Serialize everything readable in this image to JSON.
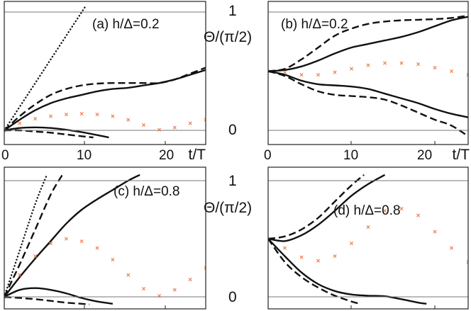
{
  "chart_data": [
    {
      "type": "line",
      "panel_label": "(a) h/Δ=0.2",
      "xlabel": "t/T",
      "ylabel": "Θ/(π/2)",
      "xlim": [
        0,
        26
      ],
      "ylim": [
        -0.05,
        1.05
      ],
      "xticks": [
        "0",
        "10",
        "20"
      ],
      "yticks": [
        "0",
        "1"
      ],
      "ref_lines": [
        0,
        1
      ],
      "series": [
        {
          "style": "dotted",
          "x": [
            0,
            3,
            6,
            9,
            10.5
          ],
          "y": [
            0,
            0.3,
            0.6,
            0.9,
            1.05
          ]
        },
        {
          "style": "dashed",
          "x": [
            0,
            2,
            4,
            6,
            8,
            10,
            12,
            14,
            16,
            18,
            20,
            22,
            24,
            26
          ],
          "y": [
            0,
            0.12,
            0.22,
            0.3,
            0.35,
            0.38,
            0.395,
            0.4,
            0.4,
            0.4,
            0.4,
            0.43,
            0.48,
            0.53
          ]
        },
        {
          "style": "solid",
          "x": [
            0,
            2,
            4,
            6,
            8,
            10,
            12,
            14,
            16,
            18,
            20,
            22,
            24,
            26
          ],
          "y": [
            0,
            0.09,
            0.17,
            0.23,
            0.27,
            0.3,
            0.33,
            0.35,
            0.36,
            0.38,
            0.4,
            0.43,
            0.47,
            0.51
          ]
        },
        {
          "style": "markers",
          "x": [
            0,
            2,
            4,
            6,
            8,
            10,
            12,
            14,
            16,
            18,
            20,
            22,
            24,
            26
          ],
          "y": [
            0,
            0.06,
            0.1,
            0.12,
            0.135,
            0.14,
            0.135,
            0.12,
            0.09,
            0.045,
            0.005,
            0.025,
            0.06,
            0.09
          ]
        },
        {
          "style": "dashed",
          "x": [
            0,
            2,
            4,
            6,
            8,
            10,
            11.5
          ],
          "y": [
            0,
            0,
            -0.01,
            -0.02,
            -0.035,
            -0.05,
            -0.06
          ]
        },
        {
          "style": "solid",
          "x": [
            0,
            2,
            4,
            6,
            8,
            10,
            12,
            13.5
          ],
          "y": [
            0,
            0.02,
            0.025,
            0.02,
            0.005,
            -0.015,
            -0.04,
            -0.06
          ]
        }
      ]
    },
    {
      "type": "line",
      "panel_label": "(b) h/Δ=0.2",
      "xlabel": "t/T",
      "ylabel": "",
      "xlim": [
        0,
        24
      ],
      "ylim": [
        -0.05,
        1.05
      ],
      "xticks": [
        "0",
        "10",
        "20"
      ],
      "yticks": [],
      "ref_lines": [
        0,
        1
      ],
      "series": [
        {
          "style": "dashed",
          "x": [
            0,
            2,
            4,
            6,
            8,
            10,
            12,
            14,
            16,
            18,
            20,
            22,
            24
          ],
          "y": [
            0.5,
            0.52,
            0.6,
            0.7,
            0.8,
            0.86,
            0.9,
            0.92,
            0.93,
            0.935,
            0.94,
            0.95,
            0.97
          ]
        },
        {
          "style": "solid",
          "x": [
            0,
            2,
            4,
            6,
            8,
            10,
            12,
            14,
            16,
            18,
            20,
            22,
            24
          ],
          "y": [
            0.5,
            0.51,
            0.54,
            0.59,
            0.65,
            0.7,
            0.73,
            0.76,
            0.79,
            0.83,
            0.88,
            0.93,
            0.96
          ]
        },
        {
          "style": "markers",
          "x": [
            0,
            2,
            4,
            6,
            8,
            10,
            12,
            14,
            16,
            18,
            20,
            22,
            24
          ],
          "y": [
            0.5,
            0.49,
            0.47,
            0.47,
            0.49,
            0.52,
            0.55,
            0.57,
            0.57,
            0.56,
            0.53,
            0.5,
            0.47
          ]
        },
        {
          "style": "solid",
          "x": [
            0,
            2,
            4,
            6,
            8,
            10,
            12,
            14,
            16,
            18,
            20,
            22,
            24
          ],
          "y": [
            0.5,
            0.47,
            0.42,
            0.39,
            0.38,
            0.37,
            0.35,
            0.31,
            0.27,
            0.23,
            0.18,
            0.14,
            0.11
          ]
        },
        {
          "style": "dashed",
          "x": [
            0,
            2,
            4,
            6,
            8,
            10,
            12,
            14,
            16,
            18,
            20,
            22,
            24
          ],
          "y": [
            0.5,
            0.46,
            0.39,
            0.33,
            0.3,
            0.29,
            0.28,
            0.26,
            0.21,
            0.15,
            0.09,
            0.04,
            -0.05
          ]
        }
      ]
    },
    {
      "type": "line",
      "panel_label": "(c) h/Δ=0.8",
      "xlabel": "",
      "ylabel": "Θ/(π/2)",
      "xlim": [
        0,
        26
      ],
      "ylim": [
        -0.05,
        1.05
      ],
      "xticks": [],
      "yticks": [
        "0",
        "1"
      ],
      "ref_lines": [
        0,
        1
      ],
      "series": [
        {
          "style": "dotted",
          "x": [
            0,
            2,
            4,
            5.5
          ],
          "y": [
            0,
            0.4,
            0.8,
            1.05
          ]
        },
        {
          "style": "dashed",
          "x": [
            0,
            2,
            4,
            6,
            7.5
          ],
          "y": [
            0,
            0.28,
            0.58,
            0.88,
            1.05
          ]
        },
        {
          "style": "solid",
          "x": [
            0,
            2,
            4,
            6,
            8,
            10,
            12,
            14,
            16,
            17.5
          ],
          "y": [
            0,
            0.17,
            0.33,
            0.48,
            0.63,
            0.75,
            0.84,
            0.92,
            1.0,
            1.05
          ]
        },
        {
          "style": "markers",
          "x": [
            0,
            2,
            4,
            6,
            8,
            10,
            12,
            14,
            16,
            18,
            20,
            22,
            24,
            26
          ],
          "y": [
            0,
            0.19,
            0.35,
            0.46,
            0.5,
            0.48,
            0.42,
            0.32,
            0.19,
            0.07,
            0.01,
            0.06,
            0.15,
            0.25
          ]
        },
        {
          "style": "solid",
          "x": [
            0,
            2,
            4,
            6,
            8,
            10,
            12,
            14
          ],
          "y": [
            0,
            0.06,
            0.075,
            0.06,
            0.03,
            -0.01,
            -0.04,
            -0.06
          ]
        },
        {
          "style": "dashed",
          "x": [
            0,
            2,
            4,
            6,
            8,
            10,
            11
          ],
          "y": [
            0,
            -0.01,
            -0.02,
            -0.035,
            -0.05,
            -0.06,
            -0.065
          ]
        }
      ]
    },
    {
      "type": "line",
      "panel_label": "(d) h/Δ=0.8",
      "xlabel": "",
      "ylabel": "",
      "xlim": [
        0,
        24
      ],
      "ylim": [
        -0.05,
        1.05
      ],
      "xticks": [],
      "yticks": [],
      "ref_lines": [
        0,
        1
      ],
      "series": [
        {
          "style": "dashed",
          "x": [
            0,
            2,
            4,
            6,
            8,
            10,
            11.5
          ],
          "y": [
            0.5,
            0.52,
            0.58,
            0.68,
            0.82,
            0.96,
            1.05
          ]
        },
        {
          "style": "solid",
          "x": [
            0,
            2,
            4,
            6,
            8,
            10,
            12,
            14
          ],
          "y": [
            0.5,
            0.48,
            0.53,
            0.62,
            0.74,
            0.87,
            0.97,
            1.05
          ]
        },
        {
          "style": "markers",
          "x": [
            0,
            2,
            4,
            6,
            8,
            10,
            12,
            14,
            16,
            18,
            20,
            22,
            24
          ],
          "y": [
            0.5,
            0.42,
            0.34,
            0.31,
            0.35,
            0.46,
            0.6,
            0.74,
            0.76,
            0.7,
            0.56,
            0.42,
            0.3
          ]
        },
        {
          "style": "dashed",
          "x": [
            0,
            2,
            4,
            6,
            8,
            10,
            11
          ],
          "y": [
            0.5,
            0.3,
            0.17,
            0.08,
            0.01,
            -0.04,
            -0.06
          ]
        },
        {
          "style": "solid",
          "x": [
            0,
            2,
            4,
            6,
            8,
            10,
            12,
            14,
            16,
            18,
            19
          ],
          "y": [
            0.5,
            0.35,
            0.21,
            0.11,
            0.05,
            0.02,
            0.01,
            0.005,
            -0.02,
            -0.05,
            -0.06
          ]
        }
      ]
    }
  ],
  "colors": {
    "line": "#111111",
    "markers": "#f07a4a",
    "refline": "#777777",
    "axis": "#222222"
  }
}
